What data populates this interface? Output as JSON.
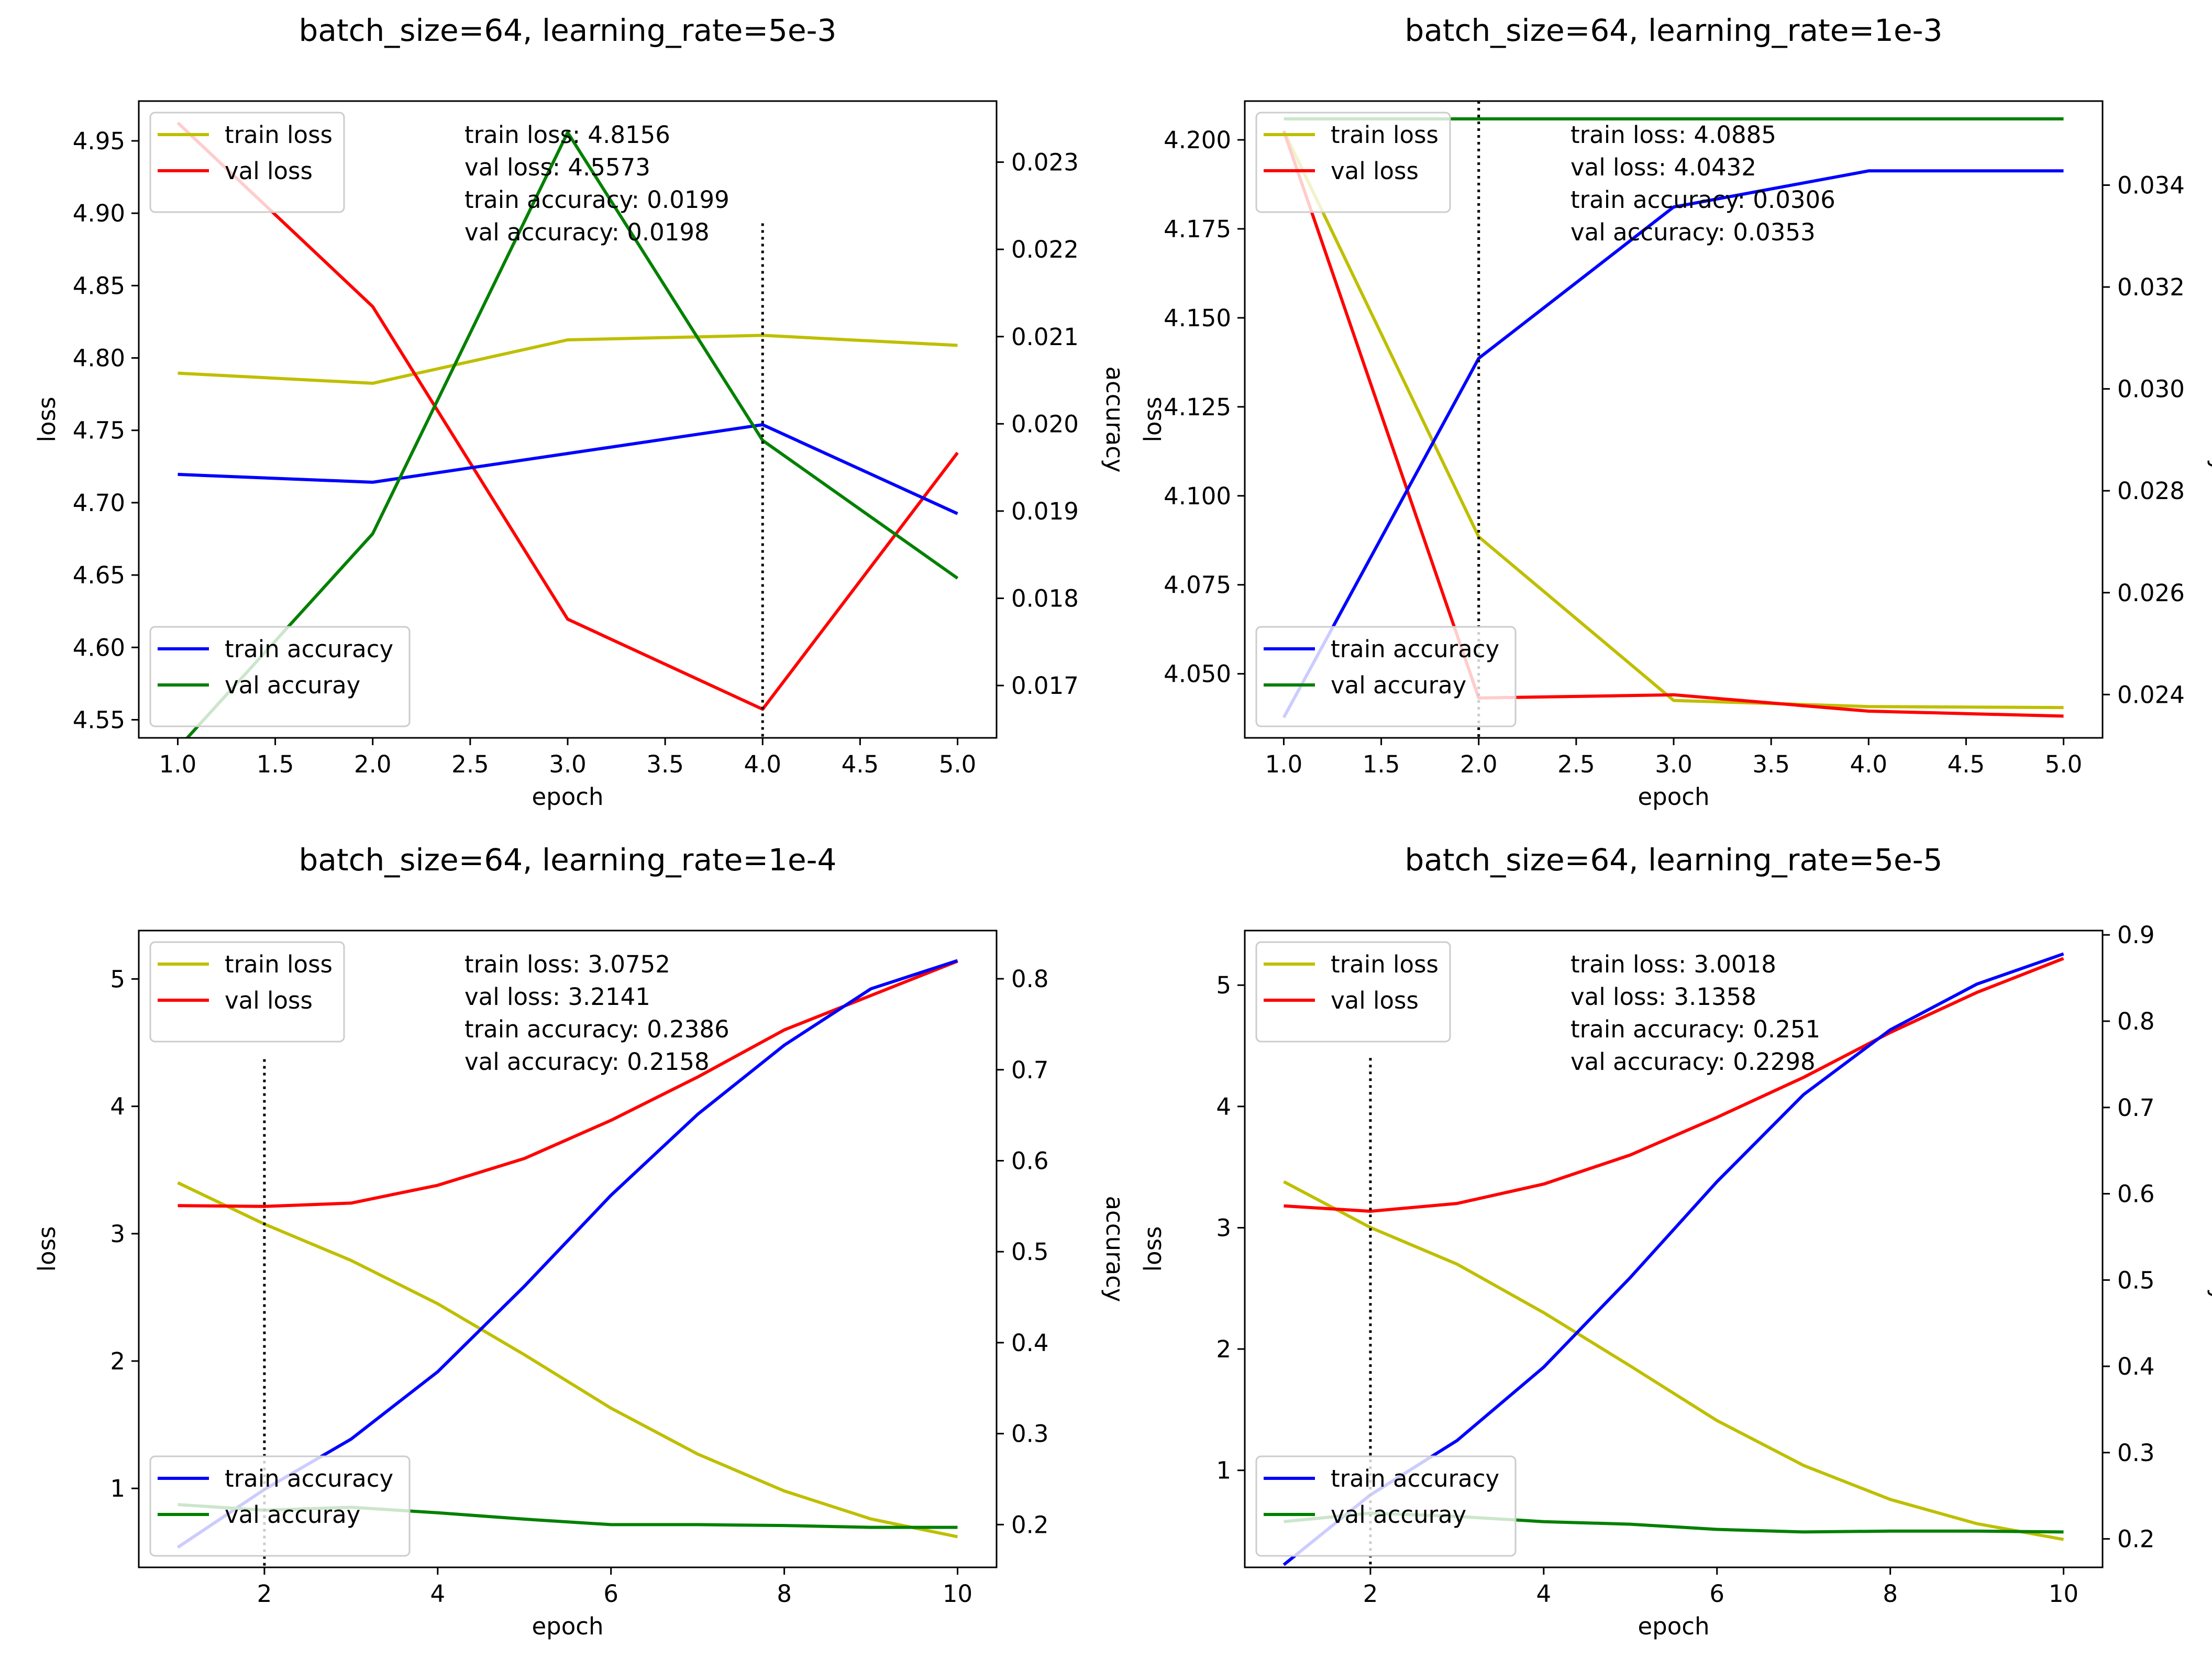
{
  "chart_data": [
    {
      "type": "line",
      "title": "batch_size=64, learning_rate=5e-3",
      "xlabel": "epoch",
      "ylabel": "loss",
      "y2label": "accuracy",
      "x": [
        1,
        2,
        3,
        4,
        5
      ],
      "xticks": [
        1.0,
        1.5,
        2.0,
        2.5,
        3.0,
        3.5,
        4.0,
        4.5,
        5.0
      ],
      "xtick_labels": [
        "1.0",
        "1.5",
        "2.0",
        "2.5",
        "3.0",
        "3.5",
        "4.0",
        "4.5",
        "5.0"
      ],
      "xlim": [
        0.8,
        5.2
      ],
      "ylim": [
        4.5375,
        4.9775
      ],
      "yticks": [
        4.55,
        4.6,
        4.65,
        4.7,
        4.75,
        4.8,
        4.85,
        4.9,
        4.95
      ],
      "ytick_labels": [
        "4.55",
        "4.60",
        "4.65",
        "4.70",
        "4.75",
        "4.80",
        "4.85",
        "4.90",
        "4.95"
      ],
      "y2lim": [
        0.0164,
        0.0237
      ],
      "y2ticks": [
        0.017,
        0.018,
        0.019,
        0.02,
        0.021,
        0.022,
        0.023
      ],
      "y2tick_labels": [
        "0.017",
        "0.018",
        "0.019",
        "0.020",
        "0.021",
        "0.022",
        "0.023"
      ],
      "loss_series": [
        {
          "name": "train loss",
          "color": "#bfbf00",
          "values": [
            4.7895,
            4.7825,
            4.8125,
            4.8156,
            4.8087
          ]
        },
        {
          "name": "val loss",
          "color": "#ff0000",
          "values": [
            4.9625,
            4.8355,
            4.6195,
            4.5573,
            4.7345
          ]
        }
      ],
      "accuracy_series": [
        {
          "name": "train accuracy",
          "color": "#0000ff",
          "values": [
            0.01942,
            0.01933,
            0.01966,
            0.01999,
            0.01897
          ]
        },
        {
          "name": "val accuray",
          "color": "#008000",
          "values": [
            0.01628,
            0.01874,
            0.02334,
            0.01981,
            0.01823
          ]
        }
      ],
      "best_epoch": 4,
      "best_marker_top": 4.893,
      "legend_loss_loc": "upper left",
      "legend_accuracy_loc": "lower left",
      "grid": false,
      "annotations": [
        "train loss: 4.8156",
        "val loss: 4.5573",
        "train accuracy: 0.0199",
        "val accuracy: 0.0198"
      ]
    },
    {
      "type": "line",
      "title": "batch_size=64, learning_rate=1e-3",
      "xlabel": "epoch",
      "ylabel": "loss",
      "y2label": "accuracy",
      "x": [
        1,
        2,
        3,
        4,
        5
      ],
      "xticks": [
        1.0,
        1.5,
        2.0,
        2.5,
        3.0,
        3.5,
        4.0,
        4.5,
        5.0
      ],
      "xtick_labels": [
        "1.0",
        "1.5",
        "2.0",
        "2.5",
        "3.0",
        "3.5",
        "4.0",
        "4.5",
        "5.0"
      ],
      "xlim": [
        0.8,
        5.2
      ],
      "ylim": [
        4.032,
        4.2109
      ],
      "yticks": [
        4.05,
        4.075,
        4.1,
        4.125,
        4.15,
        4.175,
        4.2
      ],
      "ytick_labels": [
        "4.050",
        "4.075",
        "4.100",
        "4.125",
        "4.150",
        "4.175",
        "4.200"
      ],
      "y2lim": [
        0.02315,
        0.03565
      ],
      "y2ticks": [
        0.024,
        0.026,
        0.028,
        0.03,
        0.032,
        0.034
      ],
      "y2tick_labels": [
        "0.024",
        "0.026",
        "0.028",
        "0.030",
        "0.032",
        "0.034"
      ],
      "loss_series": [
        {
          "name": "train loss",
          "color": "#bfbf00",
          "values": [
            4.2025,
            4.0885,
            4.0425,
            4.0408,
            4.0405
          ]
        },
        {
          "name": "val loss",
          "color": "#ff0000",
          "values": [
            4.2025,
            4.0432,
            4.0441,
            4.0395,
            4.0381
          ]
        }
      ],
      "accuracy_series": [
        {
          "name": "train accuracy",
          "color": "#0000ff",
          "values": [
            0.02355,
            0.0306,
            0.03357,
            0.03428,
            0.03428
          ]
        },
        {
          "name": "val accuray",
          "color": "#008000",
          "values": [
            0.0353,
            0.0353,
            0.0353,
            0.0353,
            0.0353
          ]
        }
      ],
      "best_epoch": 2,
      "best_marker_top": 4.2109,
      "legend_loss_loc": "upper left",
      "legend_accuracy_loc": "lower left",
      "grid": false,
      "annotations": [
        "train loss: 4.0885",
        "val loss: 4.0432",
        "train accuracy: 0.0306",
        "val accuracy: 0.0353"
      ]
    },
    {
      "type": "line",
      "title": "batch_size=64, learning_rate=1e-4",
      "xlabel": "epoch",
      "ylabel": "loss",
      "y2label": "accuracy",
      "x": [
        1,
        2,
        3,
        4,
        5,
        6,
        7,
        8,
        9,
        10
      ],
      "xticks": [
        2,
        4,
        6,
        8,
        10
      ],
      "xtick_labels": [
        "2",
        "4",
        "6",
        "8",
        "10"
      ],
      "xlim": [
        0.55,
        10.45
      ],
      "ylim": [
        0.38,
        5.38
      ],
      "yticks": [
        1,
        2,
        3,
        4,
        5
      ],
      "ytick_labels": [
        "1",
        "2",
        "3",
        "4",
        "5"
      ],
      "y2lim": [
        0.153,
        0.853
      ],
      "y2ticks": [
        0.2,
        0.3,
        0.4,
        0.5,
        0.6,
        0.7,
        0.8
      ],
      "y2tick_labels": [
        "0.2",
        "0.3",
        "0.4",
        "0.5",
        "0.6",
        "0.7",
        "0.8"
      ],
      "loss_series": [
        {
          "name": "train loss",
          "color": "#bfbf00",
          "values": [
            3.4,
            3.0752,
            2.79,
            2.45,
            2.05,
            1.63,
            1.27,
            0.98,
            0.76,
            0.62
          ]
        },
        {
          "name": "val loss",
          "color": "#ff0000",
          "values": [
            3.22,
            3.2141,
            3.24,
            3.38,
            3.59,
            3.89,
            4.23,
            4.6,
            4.87,
            5.14
          ]
        }
      ],
      "accuracy_series": [
        {
          "name": "train accuracy",
          "color": "#0000ff",
          "values": [
            0.175,
            0.2386,
            0.294,
            0.368,
            0.462,
            0.562,
            0.651,
            0.727,
            0.789,
            0.82
          ]
        },
        {
          "name": "val accuray",
          "color": "#008000",
          "values": [
            0.222,
            0.2158,
            0.219,
            0.213,
            0.206,
            0.2,
            0.2,
            0.199,
            0.197,
            0.197
          ]
        }
      ],
      "best_epoch": 2,
      "best_marker_top": 4.37,
      "legend_loss_loc": "upper left",
      "legend_accuracy_loc": "lower left",
      "grid": false,
      "annotations": [
        "train loss: 3.0752",
        "val loss: 3.2141",
        "train accuracy: 0.2386",
        "val accuracy: 0.2158"
      ]
    },
    {
      "type": "line",
      "title": "batch_size=64, learning_rate=5e-5",
      "xlabel": "epoch",
      "ylabel": "loss",
      "y2label": "accuracy",
      "x": [
        1,
        2,
        3,
        4,
        5,
        6,
        7,
        8,
        9,
        10
      ],
      "xticks": [
        2,
        4,
        6,
        8,
        10
      ],
      "xtick_labels": [
        "2",
        "4",
        "6",
        "8",
        "10"
      ],
      "xlim": [
        0.55,
        10.45
      ],
      "ylim": [
        0.2,
        5.45
      ],
      "yticks": [
        1,
        2,
        3,
        4,
        5
      ],
      "ytick_labels": [
        "1",
        "2",
        "3",
        "4",
        "5"
      ],
      "y2lim": [
        0.167,
        0.905
      ],
      "y2ticks": [
        0.2,
        0.3,
        0.4,
        0.5,
        0.6,
        0.7,
        0.8,
        0.9
      ],
      "y2tick_labels": [
        "0.2",
        "0.3",
        "0.4",
        "0.5",
        "0.6",
        "0.7",
        "0.8",
        "0.9"
      ],
      "loss_series": [
        {
          "name": "train loss",
          "color": "#bfbf00",
          "values": [
            3.38,
            3.0018,
            2.7,
            2.3,
            1.86,
            1.41,
            1.04,
            0.76,
            0.56,
            0.43
          ]
        },
        {
          "name": "val loss",
          "color": "#ff0000",
          "values": [
            3.18,
            3.1358,
            3.2,
            3.36,
            3.6,
            3.91,
            4.24,
            4.61,
            4.94,
            5.22
          ]
        }
      ],
      "accuracy_series": [
        {
          "name": "train accuracy",
          "color": "#0000ff",
          "values": [
            0.17,
            0.251,
            0.314,
            0.399,
            0.503,
            0.614,
            0.715,
            0.79,
            0.843,
            0.878
          ]
        },
        {
          "name": "val accuray",
          "color": "#008000",
          "values": [
            0.22,
            0.2298,
            0.226,
            0.22,
            0.217,
            0.211,
            0.208,
            0.209,
            0.209,
            0.208
          ]
        }
      ],
      "best_epoch": 2,
      "best_marker_top": 4.4,
      "legend_loss_loc": "upper left",
      "legend_accuracy_loc": "lower left",
      "grid": false,
      "annotations": [
        "train loss: 3.0018",
        "val loss: 3.1358",
        "train accuracy: 0.251",
        "val accuracy: 0.2298"
      ]
    }
  ]
}
